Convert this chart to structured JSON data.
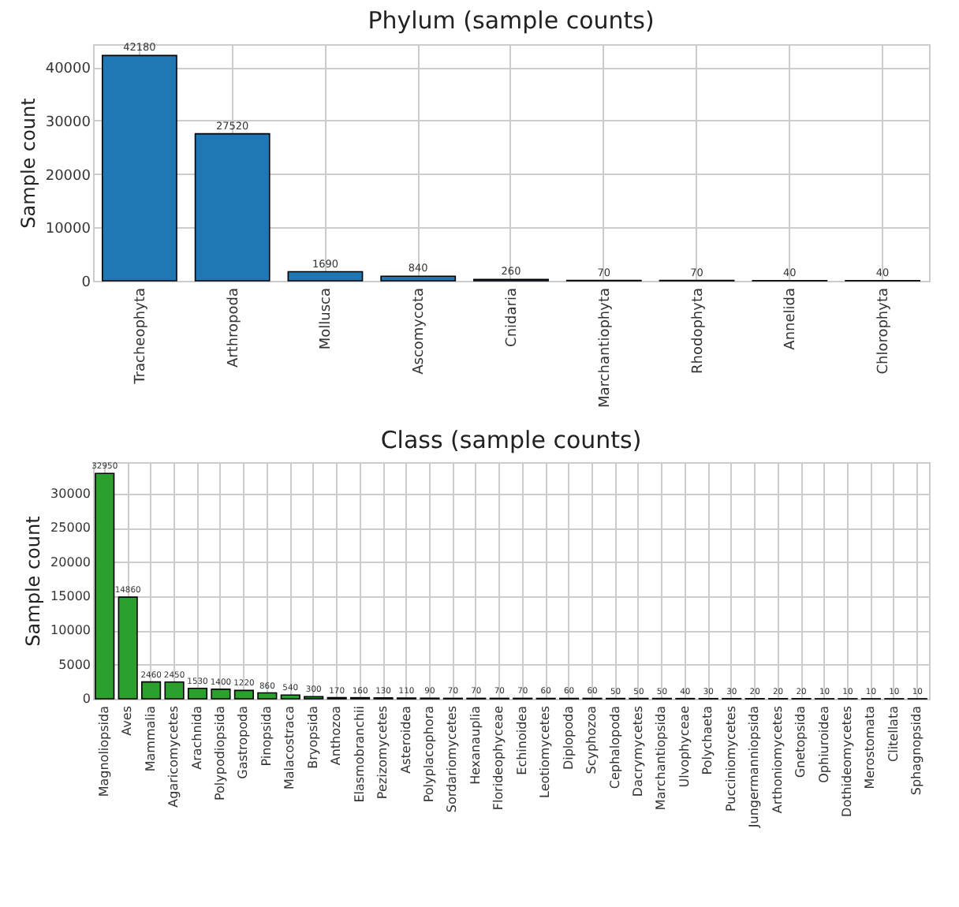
{
  "chart_data": [
    {
      "type": "bar",
      "title": "Phylum (sample counts)",
      "ylabel": "Sample count",
      "categories": [
        "Tracheophyta",
        "Arthropoda",
        "Mollusca",
        "Ascomycota",
        "Cnidaria",
        "Marchantiophyta",
        "Rhodophyta",
        "Annelida",
        "Chlorophyta"
      ],
      "values": [
        42180,
        27520,
        1690,
        840,
        260,
        70,
        70,
        40,
        40
      ],
      "color": "#1f77b4",
      "ylim": [
        0,
        44300
      ],
      "yticks": [
        0,
        10000,
        20000,
        30000,
        40000
      ],
      "grid": true,
      "data_labels": true
    },
    {
      "type": "bar",
      "title": "Class (sample counts)",
      "ylabel": "Sample count",
      "categories": [
        "Magnoliopsida",
        "Aves",
        "Mammalia",
        "Agaricomycetes",
        "Arachnida",
        "Polypodiopsida",
        "Gastropoda",
        "Pinopsida",
        "Malacostraca",
        "Bryopsida",
        "Anthozoa",
        "Elasmobranchii",
        "Pezizomycetes",
        "Asteroidea",
        "Polyplacophora",
        "Sordariomycetes",
        "Hexanauplia",
        "Florideophyceae",
        "Echinoidea",
        "Leotiomycetes",
        "Diplopoda",
        "Scyphozoa",
        "Cephalopoda",
        "Dacrymycetes",
        "Marchantiopsida",
        "Ulvophyceae",
        "Polychaeta",
        "Pucciniomycetes",
        "Jungermanniopsida",
        "Arthoniomycetes",
        "Gnetopsida",
        "Ophiuroidea",
        "Dothideomycetes",
        "Merostomata",
        "Clitellata",
        "Sphagnopsida"
      ],
      "values": [
        32950,
        14860,
        2460,
        2450,
        1530,
        1400,
        1220,
        860,
        540,
        300,
        170,
        160,
        130,
        110,
        90,
        70,
        70,
        70,
        70,
        60,
        60,
        60,
        50,
        50,
        50,
        40,
        30,
        30,
        20,
        20,
        20,
        10,
        10,
        10,
        10,
        10
      ],
      "color": "#2ca02c",
      "ylim": [
        0,
        34600
      ],
      "yticks": [
        0,
        5000,
        10000,
        15000,
        20000,
        25000,
        30000
      ],
      "grid": true,
      "data_labels": true
    }
  ]
}
